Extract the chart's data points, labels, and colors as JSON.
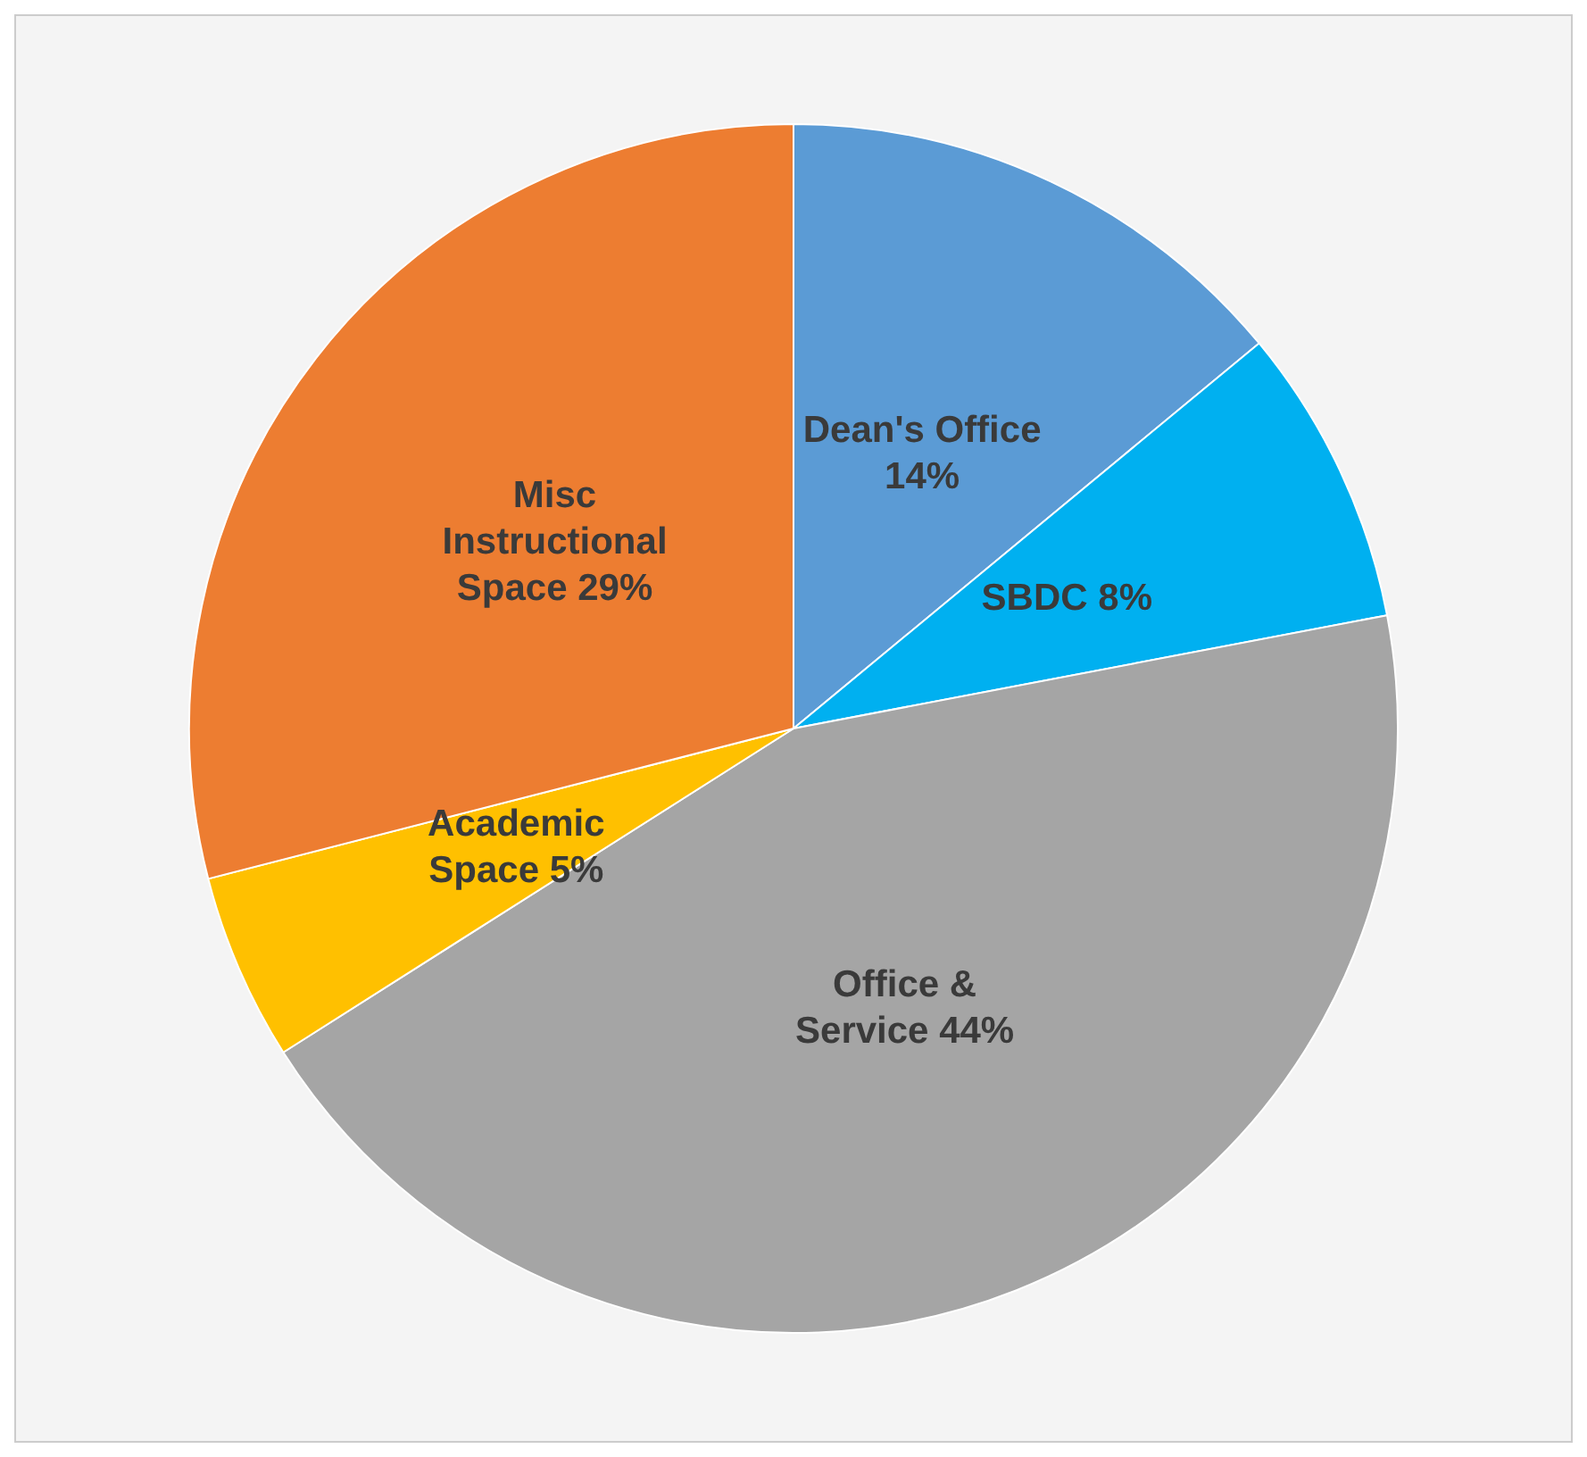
{
  "chart_data": {
    "type": "pie",
    "categories": [
      "Dean's Office",
      "SBDC",
      "Office & Service",
      "Academic Space",
      "Misc Instructional Space"
    ],
    "values": [
      14,
      8,
      44,
      5,
      29
    ],
    "value_labels": [
      "14%",
      "8%",
      "44%",
      "5%",
      "29%"
    ],
    "colors": [
      "#5b9bd5",
      "#00b0f0",
      "#a5a5a5",
      "#ffc000",
      "#ed7d31"
    ],
    "legend": false
  }
}
